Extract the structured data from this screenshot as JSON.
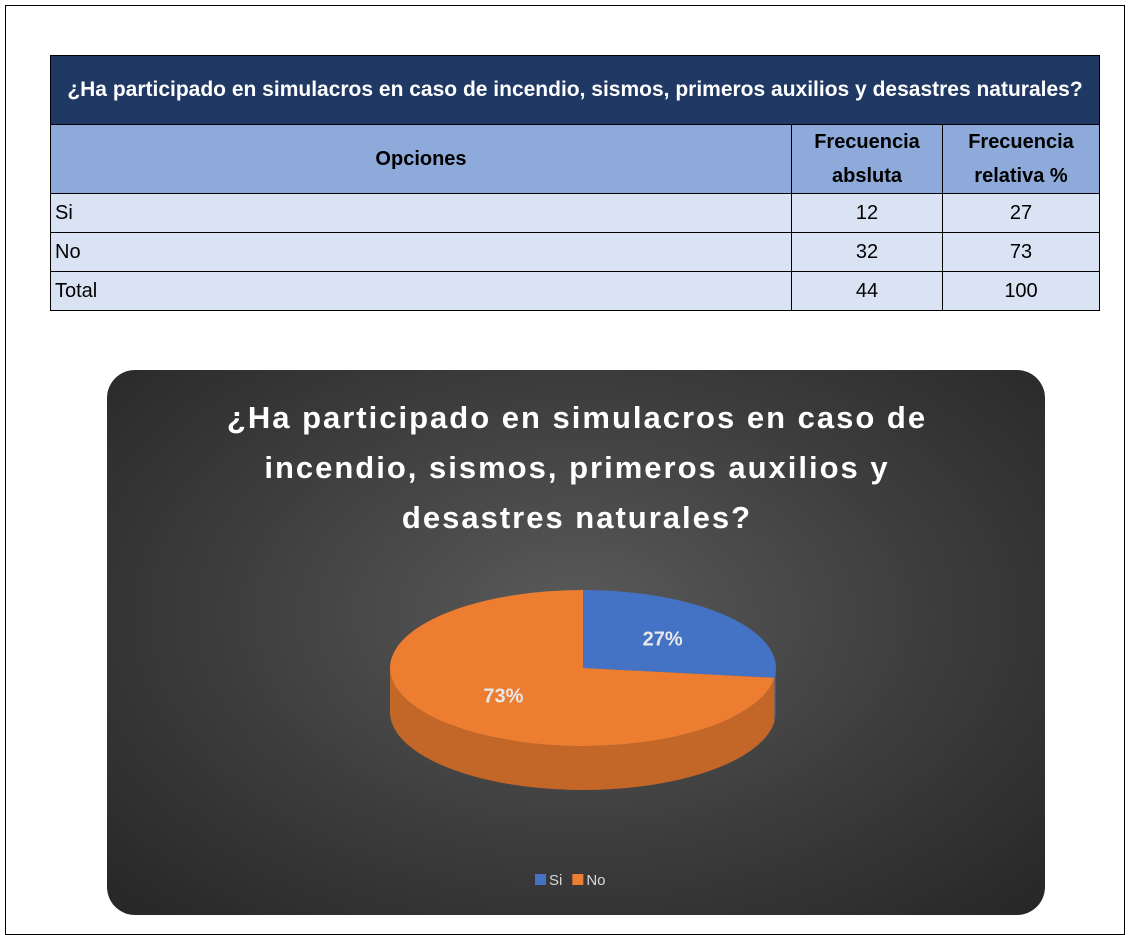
{
  "table": {
    "title": "¿Ha participado en simulacros en caso de incendio, sismos, primeros auxilios y desastres naturales?",
    "header": [
      "Opciones",
      "Frecuencia absluta",
      "Frecuencia relativa %"
    ],
    "rows": [
      [
        "Si",
        12,
        27
      ],
      [
        "No",
        32,
        73
      ],
      [
        "Total",
        44,
        100
      ]
    ]
  },
  "chart_data": {
    "type": "pie",
    "title": "¿Ha participado en simulacros en caso de incendio, sismos, primeros auxilios y desastres naturales?",
    "categories": [
      "Si",
      "No"
    ],
    "values": [
      27,
      73
    ],
    "value_labels": [
      "27%",
      "73%"
    ],
    "colors": [
      "#4472c4",
      "#ed7d31"
    ],
    "legend": "bottom"
  }
}
